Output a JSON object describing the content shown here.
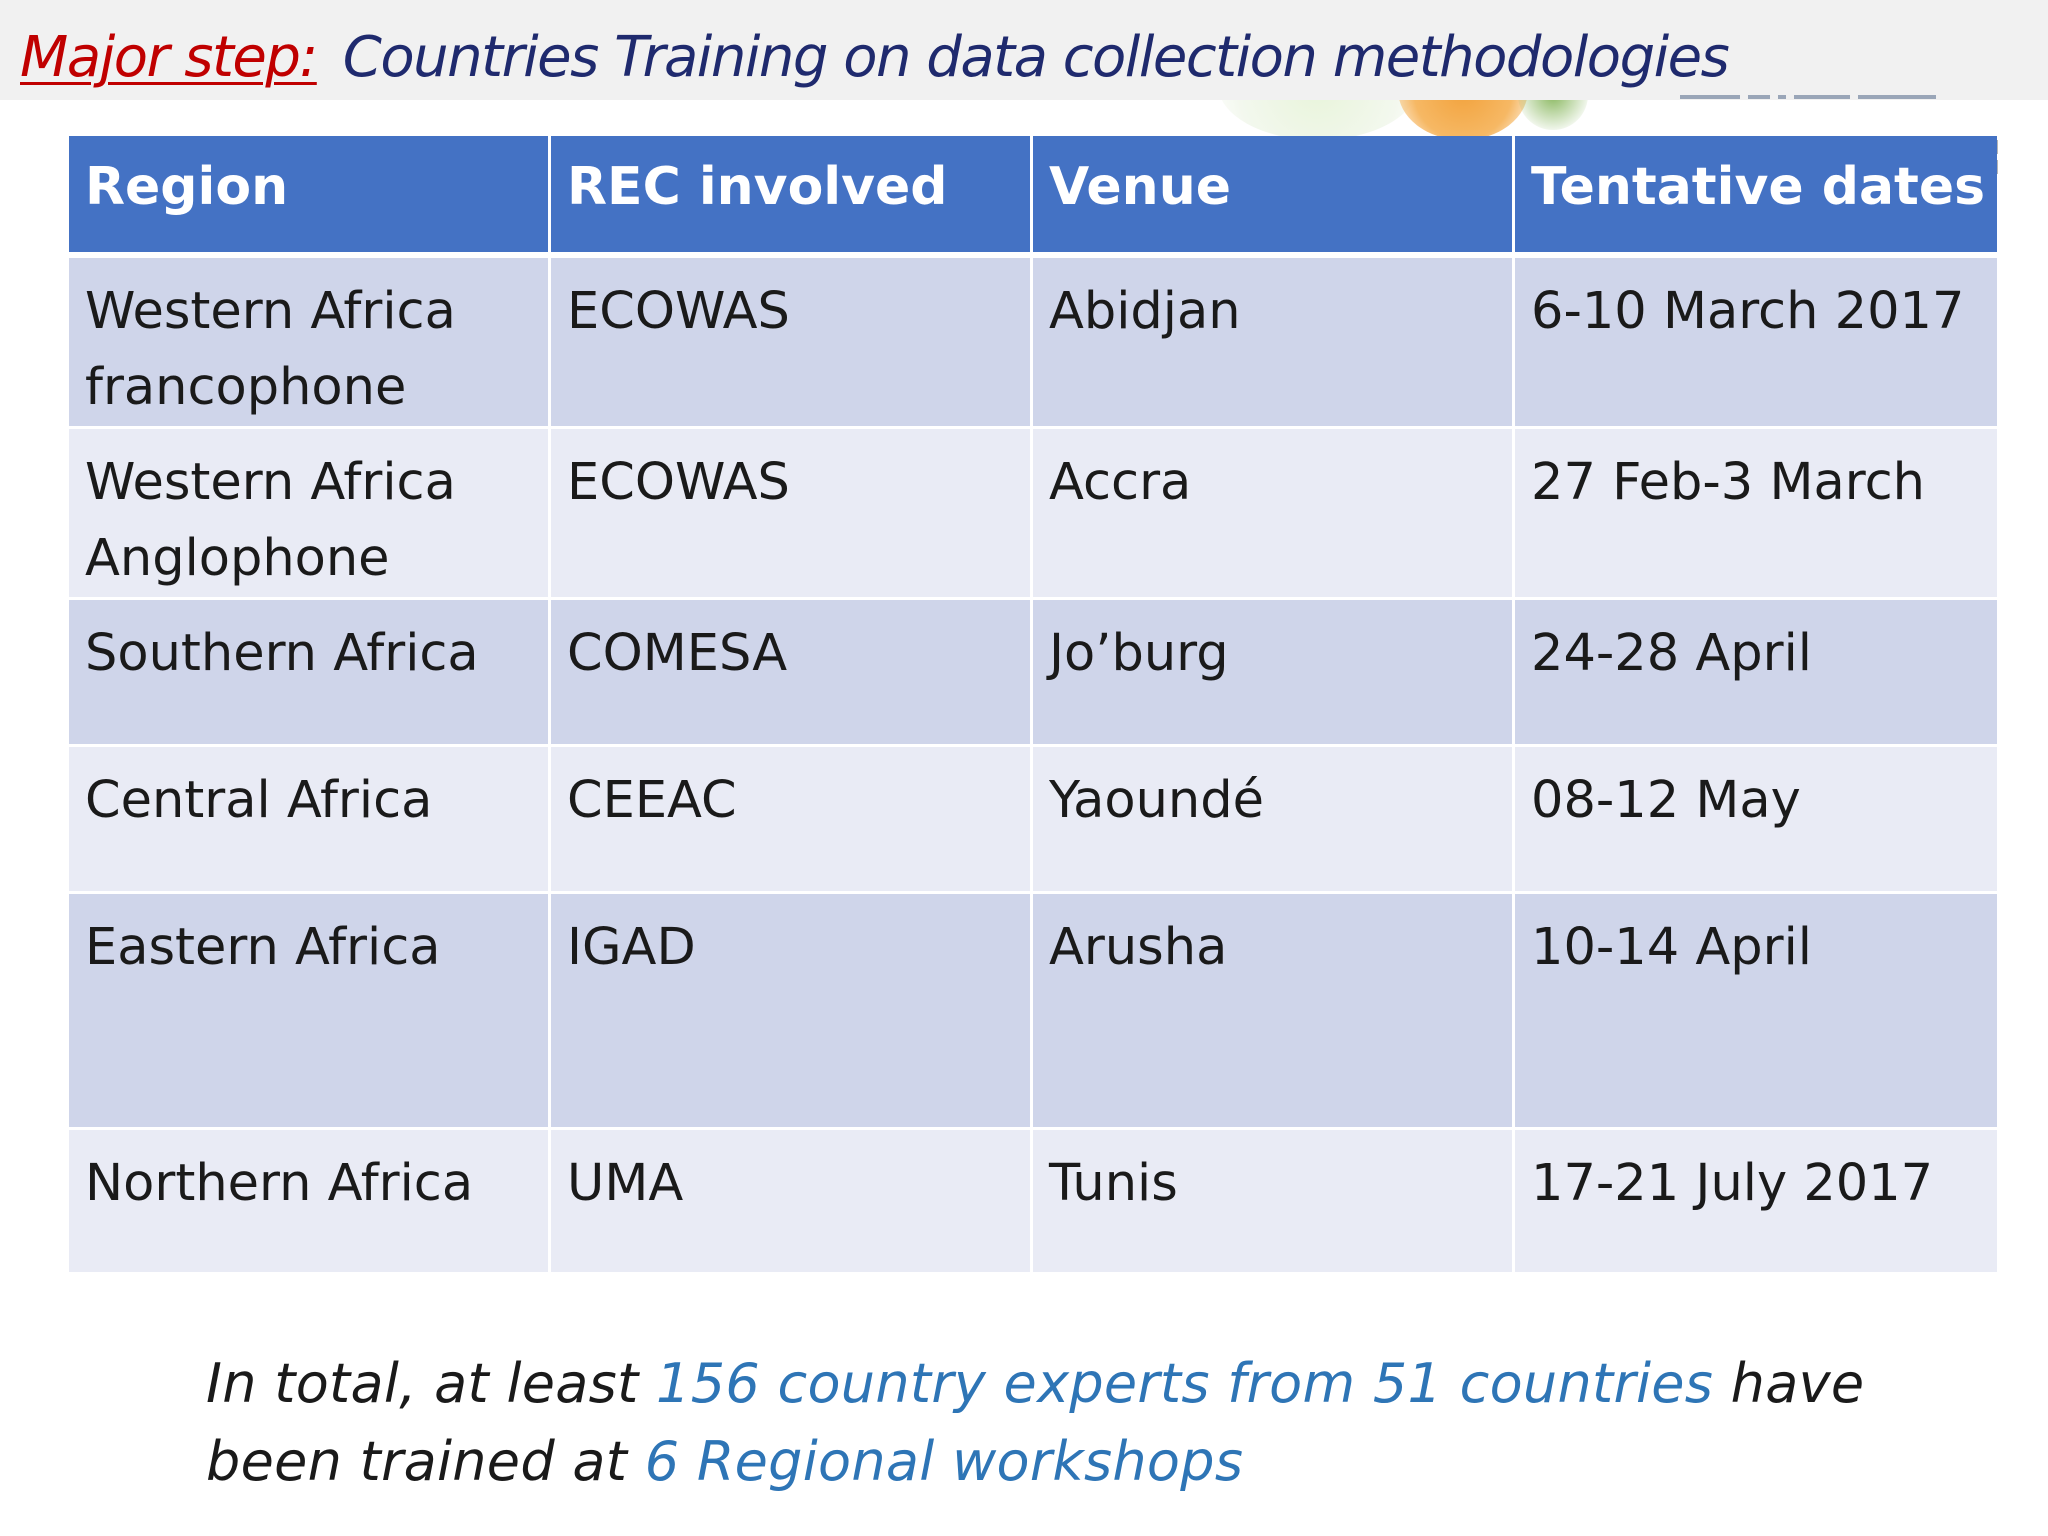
{
  "slide": {
    "title_lead": "Major step:",
    "title_subject": "Countries Training on data collection methodologies"
  },
  "table": {
    "columns": [
      "Region",
      "REC involved",
      "Venue",
      "Tentative dates"
    ],
    "rows": [
      {
        "region_line1": "Western Africa",
        "region_line2": "francophone",
        "rec": "ECOWAS",
        "venue": "Abidjan",
        "dates": "6-10 March 2017"
      },
      {
        "region_line1": "Western Africa",
        "region_line2": "Anglophone",
        "rec": "ECOWAS",
        "venue": "Accra",
        "dates": "27 Feb-3 March"
      },
      {
        "region_line1": "Southern Africa",
        "region_line2": "",
        "rec": "COMESA",
        "venue": "Jo’burg",
        "dates": "24-28 April"
      },
      {
        "region_line1": "Central Africa",
        "region_line2": "",
        "rec": "CEEAC",
        "venue": "Yaoundé",
        "dates": "08-12 May"
      },
      {
        "region_line1": "Eastern Africa",
        "region_line2": "",
        "rec": "IGAD",
        "venue": "Arusha",
        "dates": "10-14 April"
      },
      {
        "region_line1": "Northern Africa",
        "region_line2": "",
        "rec": "UMA",
        "venue": "Tunis",
        "dates": "17-21 July 2017"
      }
    ]
  },
  "footer": {
    "part1": "In total, at least ",
    "highlight1": "156 country experts from 51 countries",
    "part2": " have been trained at ",
    "highlight2": "6 Regional workshops"
  },
  "colors": {
    "title_lead": "#c00000",
    "title_subject": "#1f2a6e",
    "header_bg": "#4472c4",
    "row_dark": "#cfd5ea",
    "row_light": "#e9ebf5",
    "highlight_text": "#2e75b6"
  }
}
